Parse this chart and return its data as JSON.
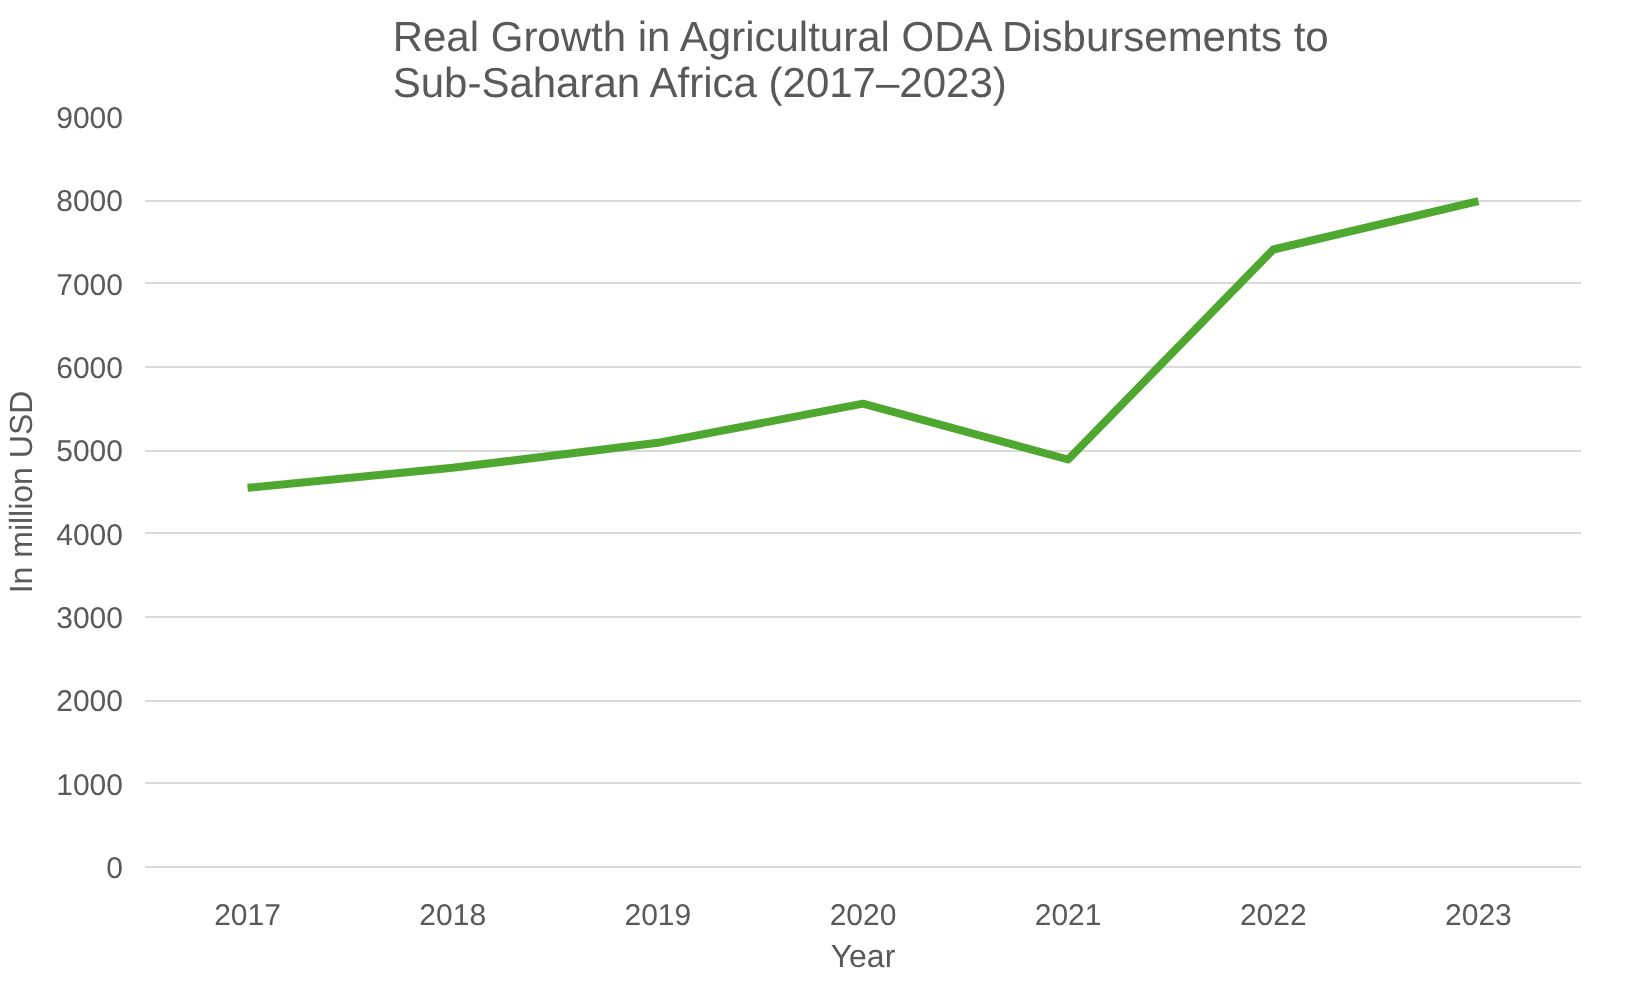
{
  "chart_data": {
    "type": "line",
    "title": "Real Growth in Agricultural ODA Disbursements to Sub-Saharan Africa (2017–2023)",
    "xlabel": "Year",
    "ylabel": "In million USD",
    "categories": [
      "2017",
      "2018",
      "2019",
      "2020",
      "2021",
      "2022",
      "2023"
    ],
    "series": [
      {
        "color": "#4ea72e",
        "values": [
          4550,
          4790,
          5090,
          5560,
          4890,
          7410,
          7990
        ]
      }
    ],
    "ylim": [
      0,
      9000
    ],
    "yticks": [
      0,
      1000,
      2000,
      3000,
      4000,
      5000,
      6000,
      7000,
      8000,
      9000
    ],
    "grid": "y",
    "marker": "none",
    "line_style": "solid"
  }
}
